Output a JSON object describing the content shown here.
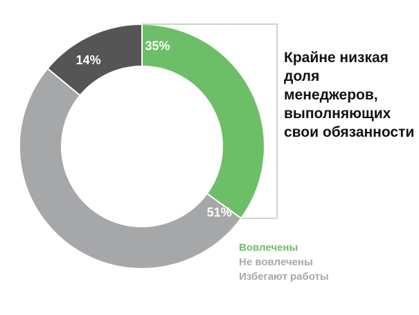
{
  "chart_data": {
    "type": "pie",
    "donut": true,
    "categories": [
      "Вовлечены",
      "Не вовлечены",
      "Избегают работы"
    ],
    "values": [
      35,
      51,
      14
    ],
    "labels": [
      "35%",
      "51%",
      "14%"
    ],
    "colors": [
      "#6dbf67",
      "#a6a7a9",
      "#555556"
    ],
    "annotation": "Крайне низкая доля менеджеров, выполняющих свои обязанности",
    "legend_position": "bottom-right"
  }
}
